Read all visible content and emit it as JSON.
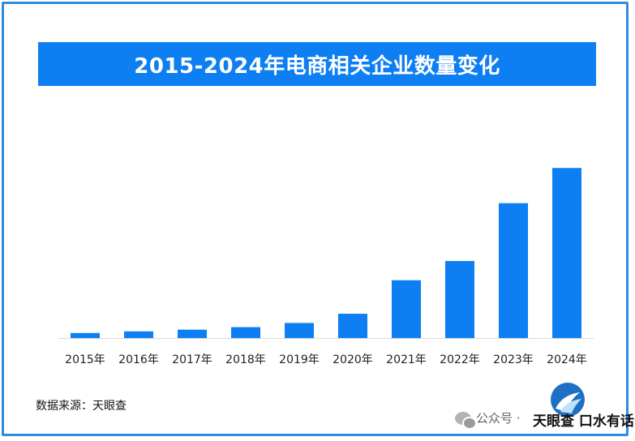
{
  "chart_data": {
    "type": "bar",
    "title": "2015-2024年电商相关企业数量变化",
    "categories": [
      "2015年",
      "2016年",
      "2017年",
      "2018年",
      "2019年",
      "2020年",
      "2021年",
      "2022年",
      "2023年",
      "2024年"
    ],
    "values": [
      6,
      8,
      10,
      13,
      18,
      29,
      69,
      92,
      161,
      203
    ],
    "ylim": [
      0,
      210
    ],
    "bar_color": "#0d7ff2",
    "grid": false,
    "legend": "none"
  },
  "source": "数据来源：天眼查",
  "wechat_label": "公众号 ·",
  "watermark_text": "天眼查 口水有话"
}
